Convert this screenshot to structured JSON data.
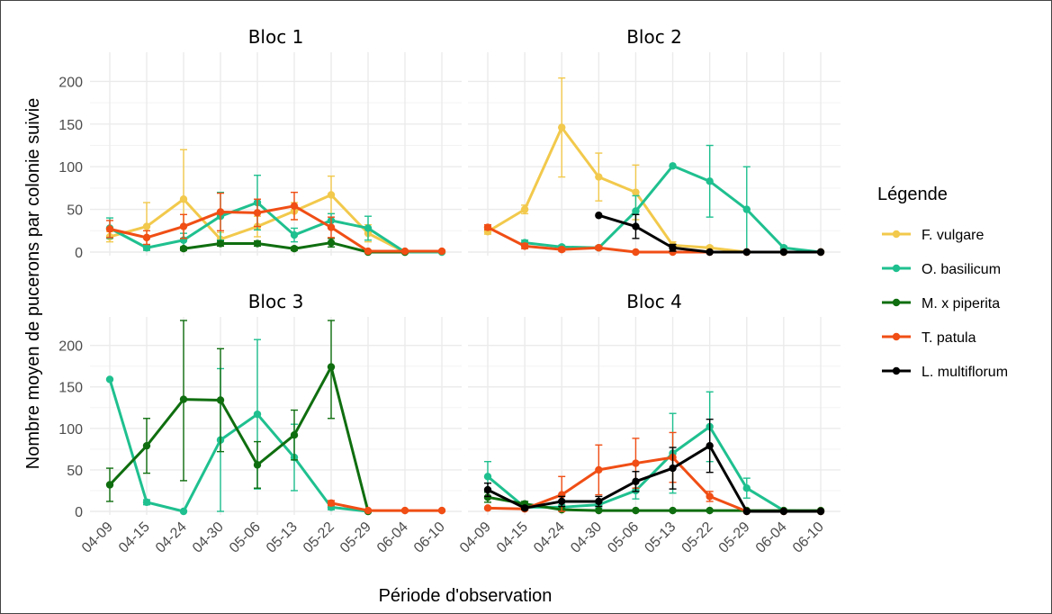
{
  "chart_data": {
    "type": "line",
    "xlabel": "Période d'observation",
    "ylabel": "Nombre moyen de pucerons par colonie suivie",
    "categories": [
      "04-09",
      "04-15",
      "04-24",
      "04-30",
      "05-06",
      "05-13",
      "05-22",
      "05-29",
      "06-04",
      "06-10"
    ],
    "ylim": [
      0,
      230
    ],
    "yticks": [
      0,
      50,
      100,
      150,
      200
    ],
    "grid": true,
    "legend": {
      "title": "Légende",
      "position": "right",
      "entries": [
        {
          "name": "F. vulgare",
          "color": "#f2c94c"
        },
        {
          "name": "O. basilicum",
          "color": "#1fc08f"
        },
        {
          "name": "M. x piperita",
          "color": "#0f6e0f"
        },
        {
          "name": "T. patula",
          "color": "#f04e15"
        },
        {
          "name": "L. multiflorum",
          "color": "#000000"
        }
      ]
    },
    "panels": [
      {
        "title": "Bloc 1",
        "series": [
          {
            "name": "F. vulgare",
            "color": "#f2c94c",
            "values": [
              18,
              30,
              62,
              15,
              30,
              48,
              67,
              22,
              0,
              0
            ],
            "err": [
              6,
              28,
              58,
              8,
              12,
              10,
              22,
              10,
              0,
              0
            ]
          },
          {
            "name": "O. basilicum",
            "color": "#1fc08f",
            "values": [
              28,
              5,
              14,
              42,
              58,
              20,
              37,
              28,
              0,
              0
            ],
            "err": [
              12,
              3,
              8,
              28,
              32,
              8,
              8,
              14,
              0,
              0
            ]
          },
          {
            "name": "M. x piperita",
            "color": "#0f6e0f",
            "values": [
              null,
              null,
              4,
              10,
              10,
              4,
              11,
              0,
              0,
              null
            ],
            "err": [
              0,
              0,
              2,
              3,
              3,
              2,
              5,
              0,
              0,
              0
            ]
          },
          {
            "name": "T. patula",
            "color": "#f04e15",
            "values": [
              27,
              17,
              30,
              47,
              46,
              54,
              29,
              1,
              1,
              1
            ],
            "err": [
              10,
              8,
              14,
              22,
              16,
              16,
              12,
              1,
              1,
              1
            ]
          }
        ]
      },
      {
        "title": "Bloc 2",
        "series": [
          {
            "name": "F. vulgare",
            "color": "#f2c94c",
            "values": [
              24,
              50,
              146,
              88,
              70,
              8,
              5,
              0,
              0,
              0
            ],
            "err": [
              3,
              5,
              58,
              28,
              32,
              4,
              2,
              0,
              0,
              0
            ]
          },
          {
            "name": "O. basilicum",
            "color": "#1fc08f",
            "values": [
              null,
              11,
              6,
              5,
              48,
              101,
              83,
              50,
              5,
              0
            ],
            "err": [
              0,
              3,
              2,
              2,
              18,
              0,
              42,
              50,
              2,
              0
            ]
          },
          {
            "name": "T. patula",
            "color": "#f04e15",
            "values": [
              29,
              7,
              3,
              5,
              0,
              0,
              0,
              0,
              0,
              0
            ],
            "err": [
              3,
              3,
              2,
              2,
              0,
              0,
              0,
              0,
              0,
              0
            ]
          },
          {
            "name": "L. multiflorum",
            "color": "#000000",
            "values": [
              null,
              null,
              null,
              43,
              30,
              5,
              0,
              0,
              0,
              0
            ],
            "err": [
              0,
              0,
              0,
              0,
              14,
              4,
              0,
              0,
              0,
              0
            ]
          }
        ]
      },
      {
        "title": "Bloc 3",
        "series": [
          {
            "name": "O. basilicum",
            "color": "#1fc08f",
            "values": [
              159,
              11,
              0,
              86,
              117,
              65,
              5,
              0,
              null,
              null
            ],
            "err": [
              0,
              3,
              0,
              86,
              90,
              40,
              3,
              0,
              0,
              0
            ]
          },
          {
            "name": "M. x piperita",
            "color": "#0f6e0f",
            "values": [
              32,
              79,
              135,
              134,
              56,
              92,
              174,
              0,
              null,
              null
            ],
            "err": [
              20,
              33,
              98,
              62,
              28,
              30,
              62,
              0,
              0,
              0
            ]
          },
          {
            "name": "T. patula",
            "color": "#f04e15",
            "values": [
              null,
              null,
              null,
              null,
              null,
              null,
              10,
              1,
              1,
              1
            ],
            "err": [
              0,
              0,
              0,
              0,
              0,
              0,
              3,
              1,
              1,
              1
            ]
          }
        ]
      },
      {
        "title": "Bloc 4",
        "series": [
          {
            "name": "O. basilicum",
            "color": "#1fc08f",
            "values": [
              42,
              5,
              5,
              8,
              25,
              70,
              102,
              28,
              1,
              0
            ],
            "err": [
              18,
              3,
              3,
              4,
              10,
              48,
              42,
              12,
              1,
              0
            ]
          },
          {
            "name": "M. x piperita",
            "color": "#0f6e0f",
            "values": [
              17,
              9,
              2,
              1,
              1,
              1,
              1,
              1,
              1,
              1
            ],
            "err": [
              6,
              3,
              1,
              1,
              1,
              1,
              1,
              1,
              1,
              1
            ]
          },
          {
            "name": "T. patula",
            "color": "#f04e15",
            "values": [
              4,
              3,
              20,
              50,
              58,
              65,
              18,
              0,
              0,
              0
            ],
            "err": [
              1,
              1,
              22,
              30,
              30,
              30,
              6,
              0,
              0,
              0
            ]
          },
          {
            "name": "L. multiflorum",
            "color": "#000000",
            "values": [
              26,
              4,
              12,
              12,
              36,
              52,
              79,
              0,
              0,
              0
            ],
            "err": [
              8,
              2,
              6,
              6,
              12,
              25,
              32,
              0,
              0,
              0
            ]
          }
        ]
      }
    ]
  }
}
